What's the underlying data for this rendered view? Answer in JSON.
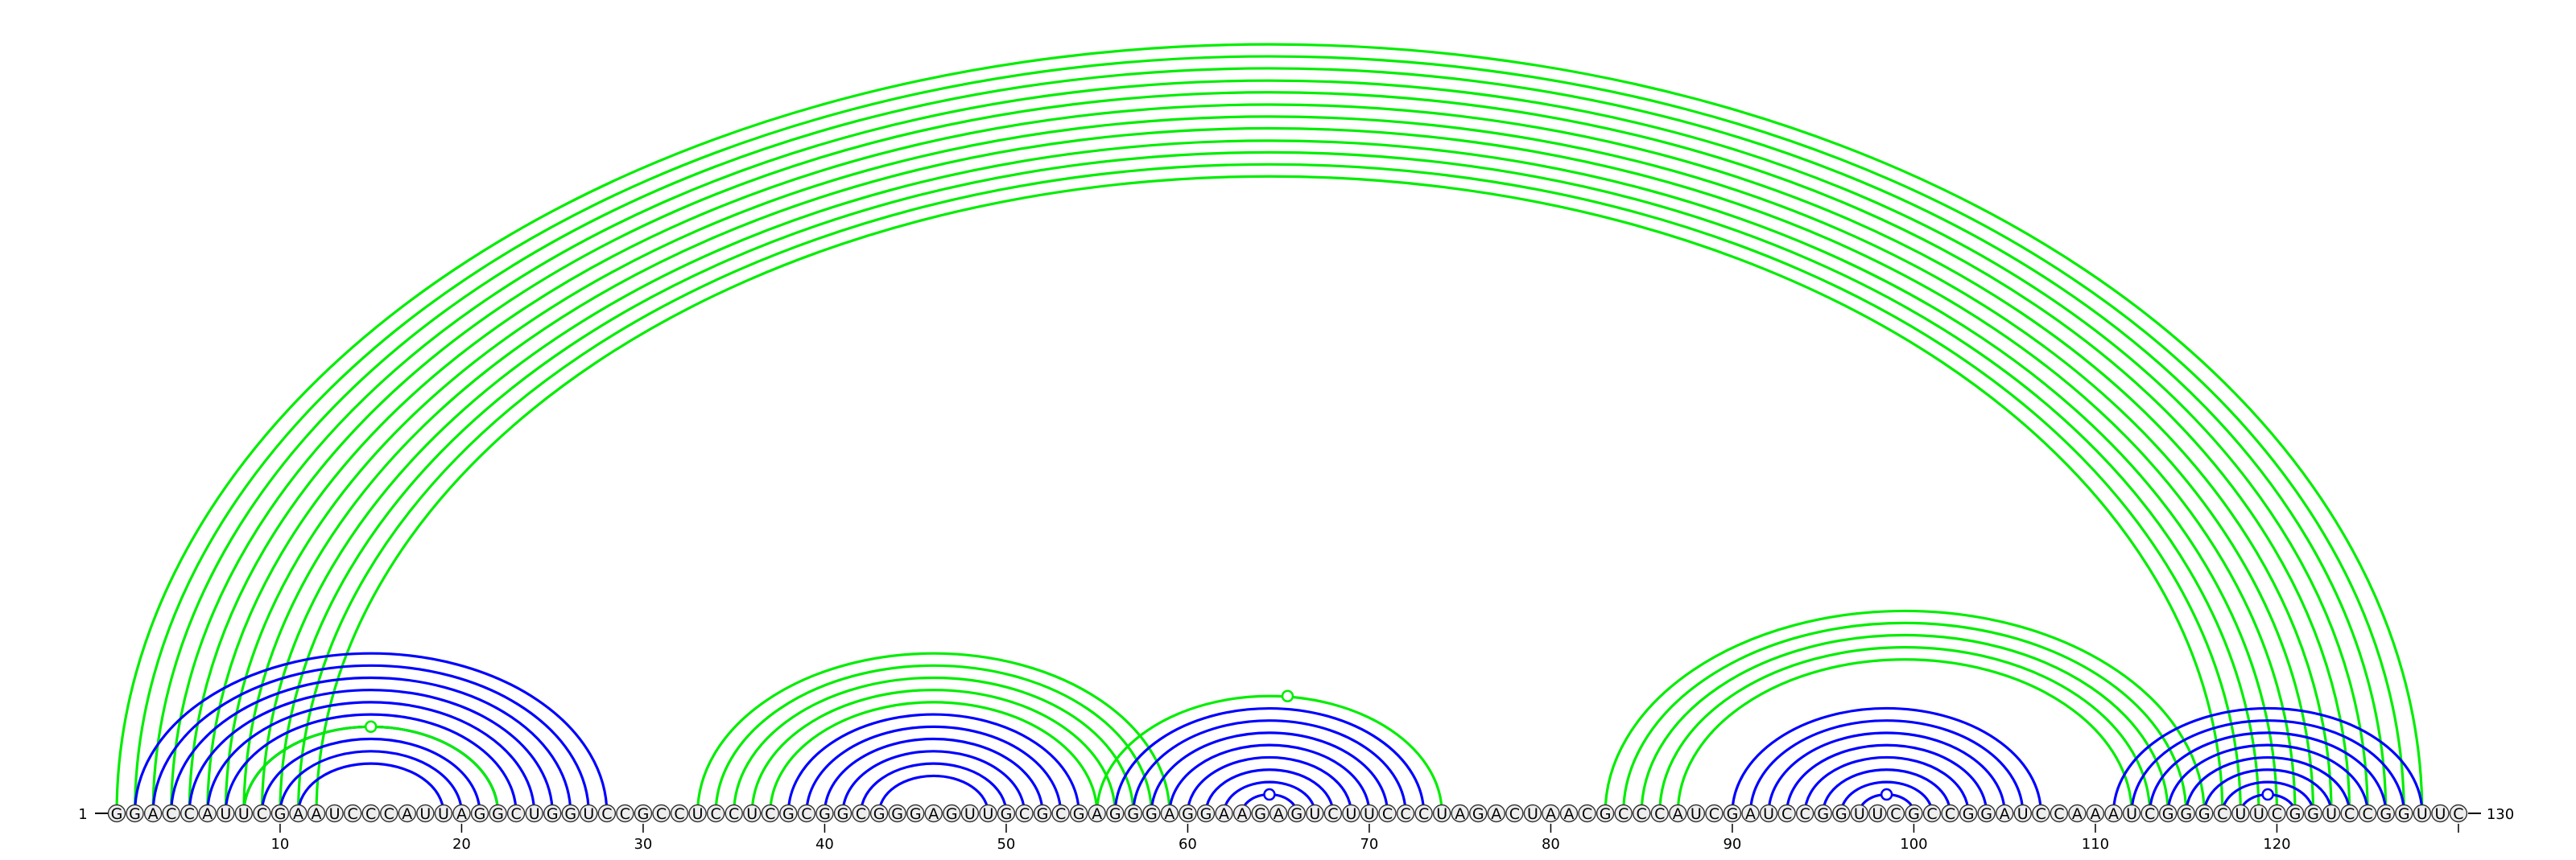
{
  "sequence": "GGACCAUUCGAAUCCCAUUAGGCUGGUCCGCCUCCUCGCGGCGGGAGUUGCGCGAGGGAGGAAGAGUCUUCCCUAGACUAACGCCCAUCGAUCCGGUUCGCCGGAUCCAAAUCGGGCUUCGGUCCGGUUC",
  "start_label": "1",
  "end_label": "130",
  "ticks": [
    {
      "pos": 10,
      "label": "10"
    },
    {
      "pos": 20,
      "label": "20"
    },
    {
      "pos": 30,
      "label": "30"
    },
    {
      "pos": 40,
      "label": "40"
    },
    {
      "pos": 50,
      "label": "50"
    },
    {
      "pos": 60,
      "label": "60"
    },
    {
      "pos": 70,
      "label": "70"
    },
    {
      "pos": 80,
      "label": "80"
    },
    {
      "pos": 90,
      "label": "90"
    },
    {
      "pos": 100,
      "label": "100"
    },
    {
      "pos": 110,
      "label": "110"
    },
    {
      "pos": 120,
      "label": "120"
    },
    {
      "pos": 130,
      "label": ""
    }
  ],
  "colors": {
    "blue_arc": "#0000ff",
    "green_arc": "#00ee00",
    "nucleotide_fill": "#eeeeee",
    "nucleotide_stroke": "#333333",
    "text": "#000000"
  },
  "arc_groups": [
    {
      "color": "green",
      "pairs": [
        [
          1,
          128
        ],
        [
          2,
          127
        ],
        [
          3,
          126
        ],
        [
          4,
          125
        ],
        [
          5,
          124
        ],
        [
          6,
          123
        ],
        [
          7,
          122
        ],
        [
          8,
          121
        ],
        [
          9,
          120
        ],
        [
          10,
          119
        ],
        [
          11,
          118
        ],
        [
          12,
          117
        ]
      ]
    },
    {
      "color": "blue",
      "pairs": [
        [
          2,
          28
        ],
        [
          3,
          27
        ],
        [
          4,
          26
        ],
        [
          5,
          25
        ],
        [
          6,
          24
        ],
        [
          7,
          23
        ],
        [
          8,
          22
        ],
        [
          9,
          21
        ],
        [
          10,
          20
        ],
        [
          11,
          19
        ]
      ]
    },
    {
      "color": "green",
      "pairs": [
        [
          8,
          22
        ]
      ]
    },
    {
      "color": "green",
      "pairs": [
        [
          33,
          59
        ],
        [
          34,
          58
        ],
        [
          35,
          57
        ],
        [
          36,
          56
        ],
        [
          37,
          55
        ]
      ]
    },
    {
      "color": "blue",
      "pairs": [
        [
          38,
          54
        ],
        [
          39,
          53
        ],
        [
          40,
          52
        ],
        [
          41,
          51
        ],
        [
          42,
          50
        ],
        [
          43,
          49
        ]
      ]
    },
    {
      "color": "green",
      "pairs": [
        [
          55,
          74
        ]
      ]
    },
    {
      "color": "blue",
      "pairs": [
        [
          56,
          73
        ],
        [
          57,
          72
        ],
        [
          58,
          71
        ],
        [
          59,
          70
        ],
        [
          60,
          69
        ],
        [
          61,
          68
        ],
        [
          62,
          67
        ],
        [
          63,
          66
        ]
      ]
    },
    {
      "color": "green",
      "pairs": [
        [
          83,
          116
        ],
        [
          84,
          115
        ],
        [
          85,
          114
        ],
        [
          86,
          113
        ],
        [
          87,
          112
        ]
      ]
    },
    {
      "color": "blue",
      "pairs": [
        [
          90,
          107
        ],
        [
          91,
          106
        ],
        [
          92,
          105
        ],
        [
          93,
          104
        ],
        [
          94,
          103
        ],
        [
          95,
          102
        ],
        [
          96,
          101
        ],
        [
          97,
          100
        ]
      ]
    },
    {
      "color": "blue",
      "pairs": [
        [
          111,
          128
        ],
        [
          112,
          127
        ],
        [
          113,
          126
        ],
        [
          114,
          125
        ],
        [
          115,
          124
        ],
        [
          116,
          123
        ],
        [
          117,
          122
        ],
        [
          118,
          121
        ]
      ]
    }
  ],
  "loop_markers": [
    {
      "pos": 65.5,
      "color": "green"
    },
    {
      "pos": 15,
      "color": "green"
    },
    {
      "pos": 64.5,
      "color": "blue"
    },
    {
      "pos": 98.5,
      "color": "blue"
    },
    {
      "pos": 119.5,
      "color": "blue"
    }
  ]
}
